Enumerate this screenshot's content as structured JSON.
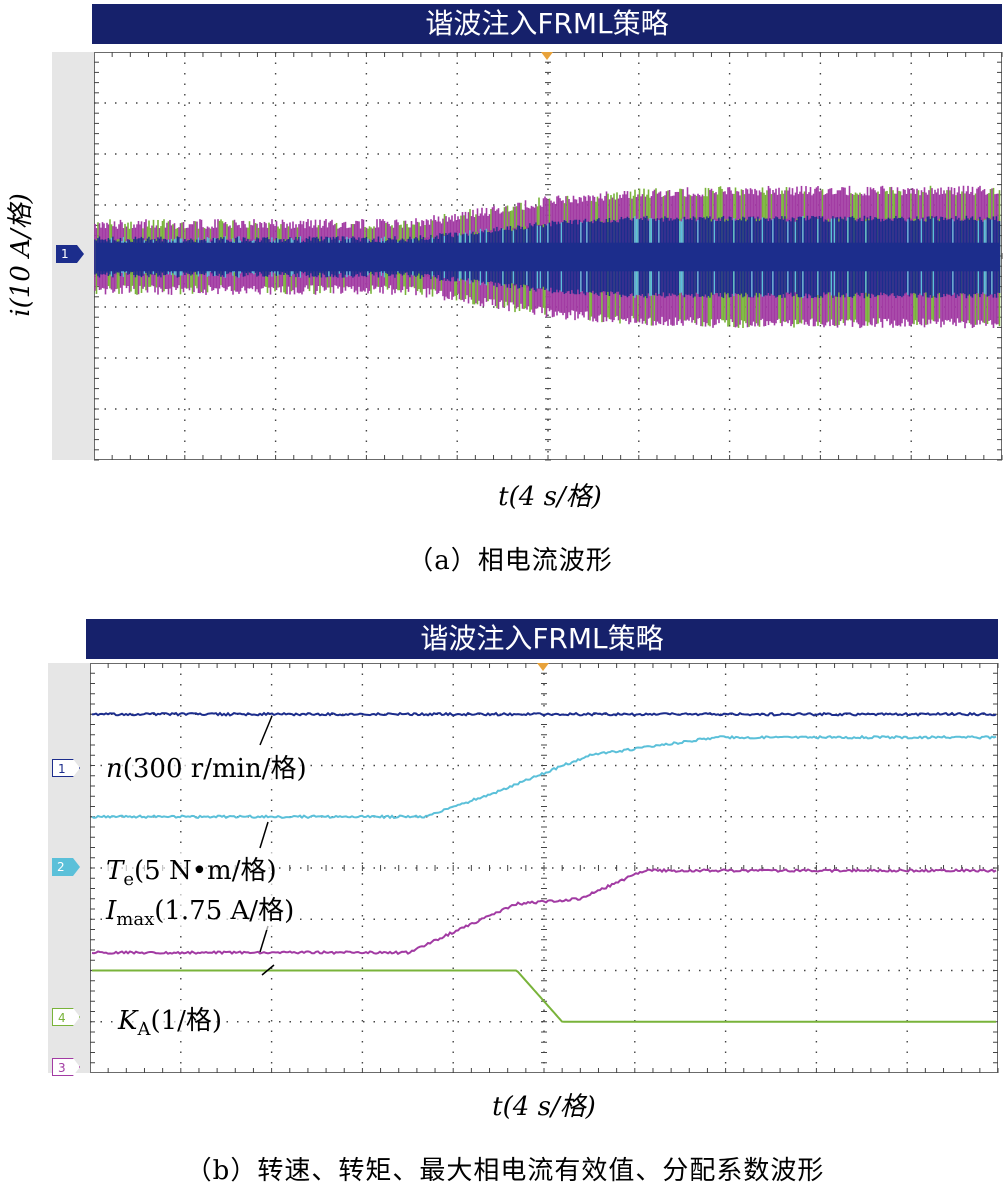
{
  "figure": {
    "panel_a": {
      "banner": "谐波注入FRML策略",
      "ylabel": "i(10 A/格)",
      "xlabel": "t(4 s/格)",
      "caption": "（a）相电流波形",
      "channel_marker": "1"
    },
    "panel_b": {
      "banner": "谐波注入FRML策略",
      "xlabel": "t(4 s/格)",
      "caption": "（b）转速、转矩、最大相电流有效值、分配系数波形",
      "channel_markers": [
        "1",
        "2",
        "4",
        "3"
      ],
      "annotations": {
        "speed": "n(300 r/min/格)",
        "torque": "Te(5 N•m/格)",
        "current": "Imax(1.75 A/格)",
        "ka": "KA(1/格)"
      }
    }
  },
  "colors": {
    "banner_bg": "#16216b",
    "ch1": "#1c2d8c",
    "ch2": "#5bc0d9",
    "ch3": "#a23ba3",
    "ch4": "#79b33a",
    "grid": "#444444",
    "trigger": "#e8a23a"
  },
  "chart_data": [
    {
      "type": "line",
      "title": "谐波注入FRML策略",
      "xlabel": "t(4 s/格)",
      "ylabel": "i(10 A/格)",
      "x_divisions": 10,
      "y_divisions": 8,
      "grid": true,
      "series": [
        {
          "name": "phase current envelope (inner, ch1 blue)",
          "x_div": [
            0,
            3.5,
            5,
            6,
            7,
            10
          ],
          "upper_div": [
            0.35,
            0.35,
            0.65,
            0.75,
            0.75,
            0.75
          ],
          "lower_div": [
            -0.35,
            -0.35,
            -0.65,
            -0.75,
            -0.75,
            -0.75
          ]
        },
        {
          "name": "phase current envelope (outer, ch3 magenta)",
          "x_div": [
            0,
            3.5,
            5,
            6,
            7,
            10
          ],
          "upper_div": [
            0.65,
            0.65,
            1.1,
            1.25,
            1.3,
            1.3
          ],
          "lower_div": [
            -0.65,
            -0.65,
            -1.1,
            -1.25,
            -1.3,
            -1.3
          ]
        }
      ]
    },
    {
      "type": "line",
      "title": "谐波注入FRML策略",
      "xlabel": "t(4 s/格)",
      "x_divisions": 10,
      "y_divisions": 8,
      "grid": true,
      "series": [
        {
          "name": "n(300 r/min/格)",
          "x_div": [
            0,
            10
          ],
          "y_div": [
            7.0,
            7.0
          ]
        },
        {
          "name": "Te(5 N•m/格)",
          "x_div": [
            0,
            3.7,
            4.5,
            5.5,
            6.9,
            10
          ],
          "y_div": [
            5.0,
            5.0,
            5.5,
            6.2,
            6.55,
            6.55
          ]
        },
        {
          "name": "Imax(1.75 A/格)",
          "x_div": [
            0,
            3.5,
            4.7,
            5.4,
            6.1,
            10
          ],
          "y_div": [
            2.35,
            2.35,
            3.3,
            3.4,
            3.95,
            3.95
          ]
        },
        {
          "name": "KA(1/格)",
          "x_div": [
            0,
            4.7,
            5.2,
            10
          ],
          "y_div": [
            2.0,
            2.0,
            1.0,
            1.0
          ]
        }
      ]
    }
  ]
}
